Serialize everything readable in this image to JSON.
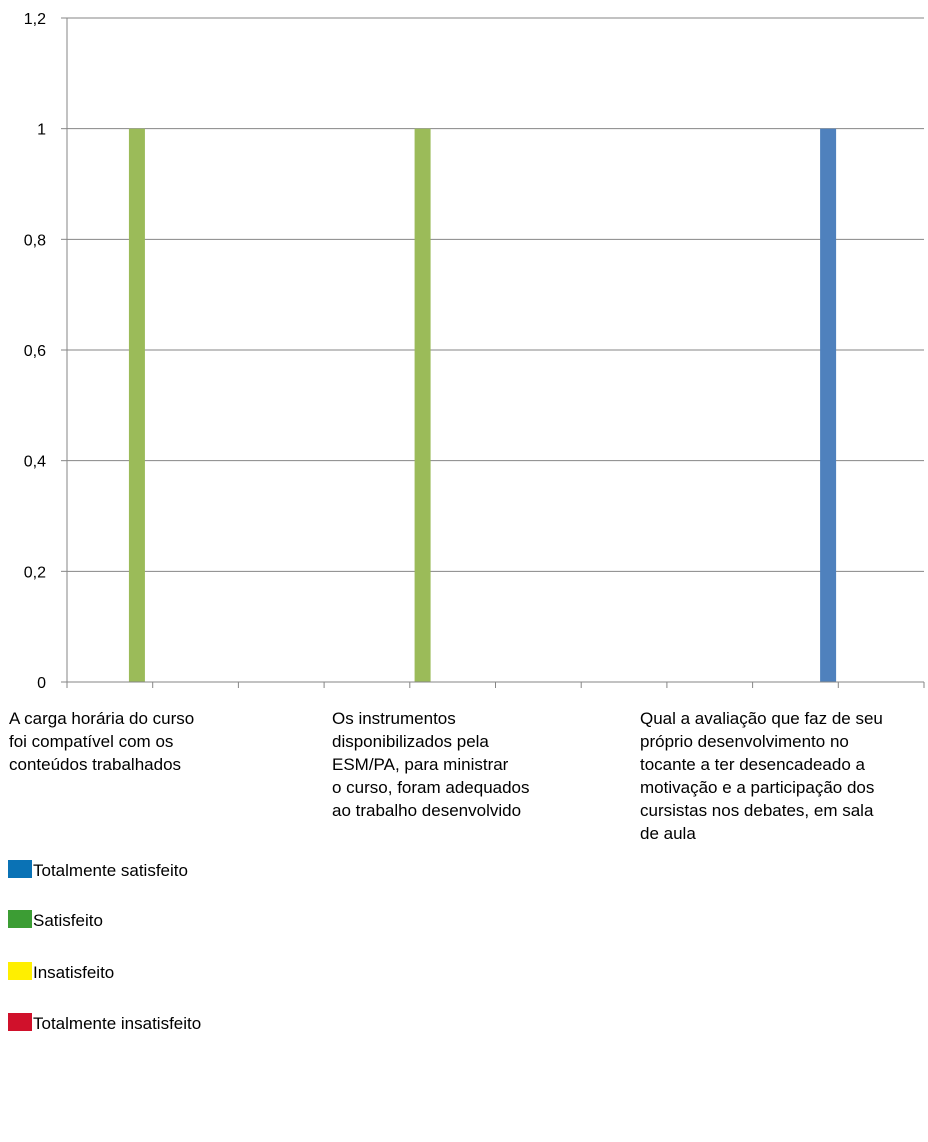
{
  "chart_data": {
    "type": "bar",
    "stacked": false,
    "categories": [
      "A carga horária do curso\nfoi compatível com os\nconteúdos trabalhados",
      "Os instrumentos\ndisponibilizados pela\nESM/PA, para ministrar\no curso, foram adequados\nao trabalho desenvolvido",
      "Qual a avaliação que faz de seu\npróprio  desenvolvimento no\ntocante a ter desencadeado a\nmotivação e a participação dos\ncursistas nos debates, em sala\nde aula"
    ],
    "y_ticks": [
      "0",
      "0,2",
      "0,4",
      "0,6",
      "0,8",
      "1",
      "1,2"
    ],
    "ylim": [
      0,
      1.2
    ],
    "grid": true,
    "legend_position": "bottom",
    "bars": [
      {
        "category_index": 0,
        "value": 1,
        "color": "#9bbb59"
      },
      {
        "category_index": 1,
        "value": 1,
        "color": "#9bbb59"
      },
      {
        "category_index": 2,
        "value": 1,
        "color": "#4f81bd"
      }
    ],
    "legend": [
      {
        "label": "Totalmente satisfeito",
        "color": "#0a72b5"
      },
      {
        "label": "Satisfeito",
        "color": "#3c9d34"
      },
      {
        "label": "Insatisfeito",
        "color": "#ffef00"
      },
      {
        "label": "Totalmente insatisfeito",
        "color": "#d0112b"
      }
    ],
    "gridline_color": "#868686",
    "axis_color": "#868686"
  }
}
